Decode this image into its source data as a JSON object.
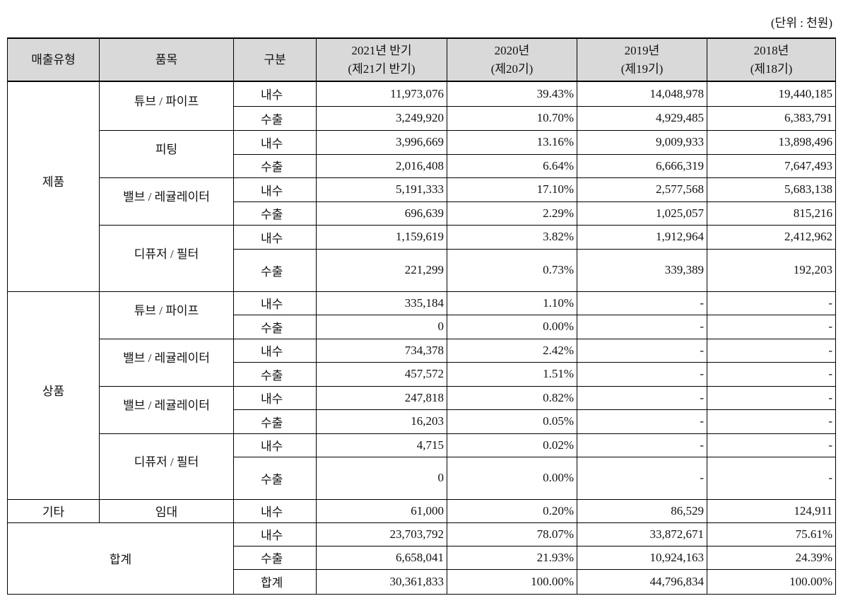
{
  "unit_note": "(단위 : 천원)",
  "table": {
    "header": [
      "매출유형",
      "품목",
      "구분",
      [
        "2021년 반기",
        "(제21기 반기)"
      ],
      [
        "2020년",
        "(제20기)"
      ],
      [
        "2019년",
        "(제19기)"
      ],
      [
        "2018년",
        "(제18기)"
      ]
    ],
    "sections": [
      {
        "type": "제품",
        "items": [
          {
            "name": "튜브 / 파이프",
            "rows": [
              {
                "kind": "내수",
                "values": [
                  "11,973,076",
                  "39.43%",
                  "14,048,978",
                  "19,440,185"
                ]
              },
              {
                "kind": "수출",
                "values": [
                  "3,249,920",
                  "10.70%",
                  "4,929,485",
                  "6,383,791"
                ]
              }
            ]
          },
          {
            "name": "피팅",
            "rows": [
              {
                "kind": "내수",
                "values": [
                  "3,996,669",
                  "13.16%",
                  "9,009,933",
                  "13,898,496"
                ]
              },
              {
                "kind": "수출",
                "values": [
                  "2,016,408",
                  "6.64%",
                  "6,666,319",
                  "7,647,493"
                ]
              }
            ]
          },
          {
            "name": "밸브 / 레귤레이터",
            "rows": [
              {
                "kind": "내수",
                "values": [
                  "5,191,333",
                  "17.10%",
                  "2,577,568",
                  "5,683,138"
                ]
              },
              {
                "kind": "수출",
                "values": [
                  "696,639",
                  "2.29%",
                  "1,025,057",
                  "815,216"
                ]
              }
            ]
          },
          {
            "name": "디퓨저 / 필터",
            "rows": [
              {
                "kind": "내수",
                "values": [
                  "1,159,619",
                  "3.82%",
                  "1,912,964",
                  "2,412,962"
                ]
              },
              {
                "kind": "수출",
                "values": [
                  "221,299",
                  "0.73%",
                  "339,389",
                  "192,203"
                ]
              }
            ]
          }
        ]
      },
      {
        "type": "상품",
        "items": [
          {
            "name": "튜브 / 파이프",
            "rows": [
              {
                "kind": "내수",
                "values": [
                  "335,184",
                  "1.10%",
                  "-",
                  "-"
                ]
              },
              {
                "kind": "수출",
                "values": [
                  "0",
                  "0.00%",
                  "-",
                  "-"
                ]
              }
            ]
          },
          {
            "name": "밸브 / 레귤레이터",
            "rows": [
              {
                "kind": "내수",
                "values": [
                  "734,378",
                  "2.42%",
                  "-",
                  "-"
                ]
              },
              {
                "kind": "수출",
                "values": [
                  "457,572",
                  "1.51%",
                  "-",
                  "-"
                ]
              }
            ]
          },
          {
            "name": "밸브 / 레귤레이터",
            "rows": [
              {
                "kind": "내수",
                "values": [
                  "247,818",
                  "0.82%",
                  "-",
                  "-"
                ]
              },
              {
                "kind": "수출",
                "values": [
                  "16,203",
                  "0.05%",
                  "-",
                  "-"
                ]
              }
            ]
          },
          {
            "name": "디퓨저 / 필터",
            "rows": [
              {
                "kind": "내수",
                "values": [
                  "4,715",
                  "0.02%",
                  "-",
                  "-"
                ]
              },
              {
                "kind": "수출",
                "values": [
                  "0",
                  "0.00%",
                  "-",
                  "-"
                ]
              }
            ]
          }
        ]
      },
      {
        "type": "기타",
        "items": [
          {
            "name": "임대",
            "rows": [
              {
                "kind": "내수",
                "values": [
                  "61,000",
                  "0.20%",
                  "86,529",
                  "124,911"
                ]
              }
            ]
          }
        ]
      }
    ],
    "total": {
      "label": "합계",
      "rows": [
        {
          "kind": "내수",
          "values": [
            "23,703,792",
            "78.07%",
            "33,872,671",
            "75.61%"
          ]
        },
        {
          "kind": "수출",
          "values": [
            "6,658,041",
            "21.93%",
            "10,924,163",
            "24.39%"
          ]
        },
        {
          "kind": "합계",
          "values": [
            "30,361,833",
            "100.00%",
            "44,796,834",
            "100.00%"
          ]
        }
      ]
    }
  }
}
